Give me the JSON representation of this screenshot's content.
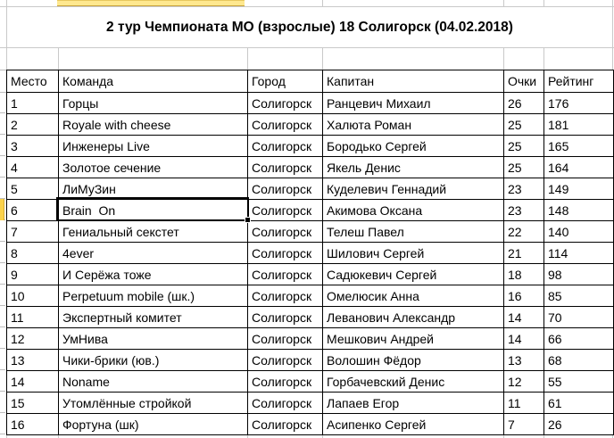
{
  "spreadsheet": {
    "title": "2 тур Чемпионата МО (взрослые) 18 Солигорск (04.02.2018)",
    "columns": [
      "Место",
      "Команда",
      "Город",
      "Капитан",
      "Очки",
      "Рейтинг"
    ],
    "rows": [
      [
        "1",
        "Горцы",
        "Солигорск",
        "Ранцевич Михаил",
        "26",
        "176"
      ],
      [
        "2",
        "Royale with cheese",
        "Солигорск",
        "Халюта Роман",
        "25",
        "181"
      ],
      [
        "3",
        "Инженеры Live",
        "Солигорск",
        "Бородько Сергей",
        "25",
        "165"
      ],
      [
        "4",
        "Золотое сечение",
        "Солигорск",
        "Якель Денис",
        "25",
        "164"
      ],
      [
        "5",
        "ЛиМуЗин",
        "Солигорск",
        "Куделевич Геннадий",
        "23",
        "149"
      ],
      [
        "6",
        "Brain  On",
        "Солигорск",
        "Акимова Оксана",
        "23",
        "148"
      ],
      [
        "7",
        "Гениальный секстет",
        "Солигорск",
        "Телеш Павел",
        "22",
        "140"
      ],
      [
        "8",
        "4ever",
        "Солигорск",
        "Шилович Сергей",
        "21",
        "114"
      ],
      [
        "9",
        "И Серёжа тоже",
        "Солигорск",
        "Садюкевич Сергей",
        "18",
        "98"
      ],
      [
        "10",
        "Perpetuum mobile (шк.)",
        "Солигорск",
        "Омелюсик Анна",
        "16",
        "85"
      ],
      [
        "11",
        "Экспертный комитет",
        "Солигорск",
        "Леванович Александр",
        "14",
        "70"
      ],
      [
        "12",
        "УмНива",
        "Солигорск",
        "Мешкович Андрей",
        "14",
        "66"
      ],
      [
        "13",
        "Чики-брики (юв.)",
        "Солигорск",
        "Волошин Фёдор",
        "13",
        "68"
      ],
      [
        "14",
        "Noname",
        "Солигорск",
        "Горбачевский Денис",
        "12",
        "55"
      ],
      [
        "15",
        "Утомлённые стройкой",
        "Солигорск",
        "Лапаев Егор",
        "11",
        "61"
      ],
      [
        "16",
        "Фортуна (шк)",
        "Солигорск",
        "Асипенко Сергей",
        "7",
        "26"
      ]
    ],
    "selected_cell": {
      "row_place": "6",
      "column": "Команда",
      "value": "Brain  On"
    },
    "colors": {
      "header_highlight_yellow": "#ffe88f",
      "row_marker_yellow": "#fbd24b",
      "gridline_gray": "#c9c9c9",
      "table_border": "#000000",
      "background": "#ffffff"
    }
  }
}
